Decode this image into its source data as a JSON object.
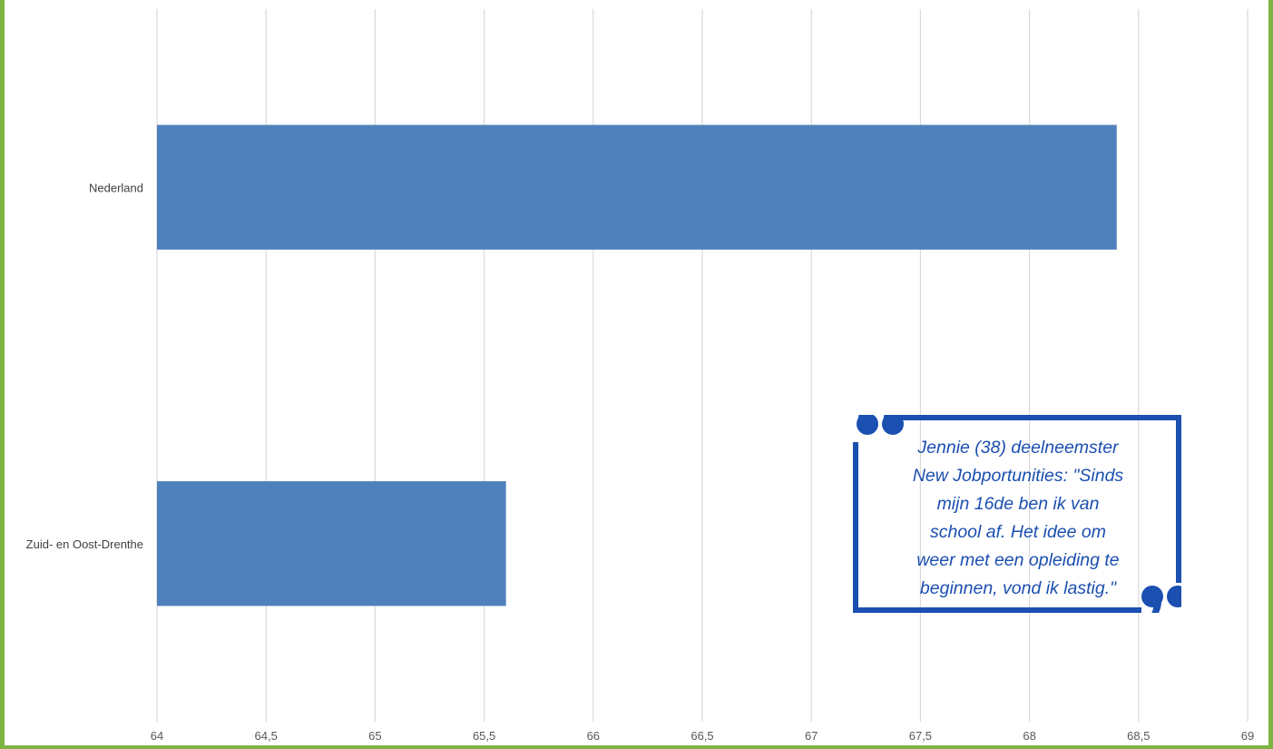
{
  "chart_data": {
    "type": "bar",
    "orientation": "horizontal",
    "categories": [
      "Nederland",
      "Zuid- en Oost-Drenthe"
    ],
    "values": [
      68.4,
      65.6
    ],
    "xlim": [
      64,
      69
    ],
    "x_ticks": [
      "64",
      "64,5",
      "65",
      "65,5",
      "66",
      "66,5",
      "67",
      "67,5",
      "68",
      "68,5",
      "69"
    ],
    "x_tick_values": [
      64,
      64.5,
      65,
      65.5,
      66,
      66.5,
      67,
      67.5,
      68,
      68.5,
      69
    ],
    "grid": "vertical",
    "bar_color": "#4f81bd",
    "grid_color": "#d9d9d9"
  },
  "quote": {
    "text": "Jennie (38) deelneemster\nNew Jobportunities: \"Sinds\nmijn 16de ben ik van\nschool af. Het idee om\nweer met een opleiding te\nbeginnen, vond ik lastig.\"",
    "color": "#1b4fb0",
    "open_mark_icon": "open-quote-icon",
    "close_mark_icon": "close-quote-icon"
  },
  "frame_color": "#7db343"
}
